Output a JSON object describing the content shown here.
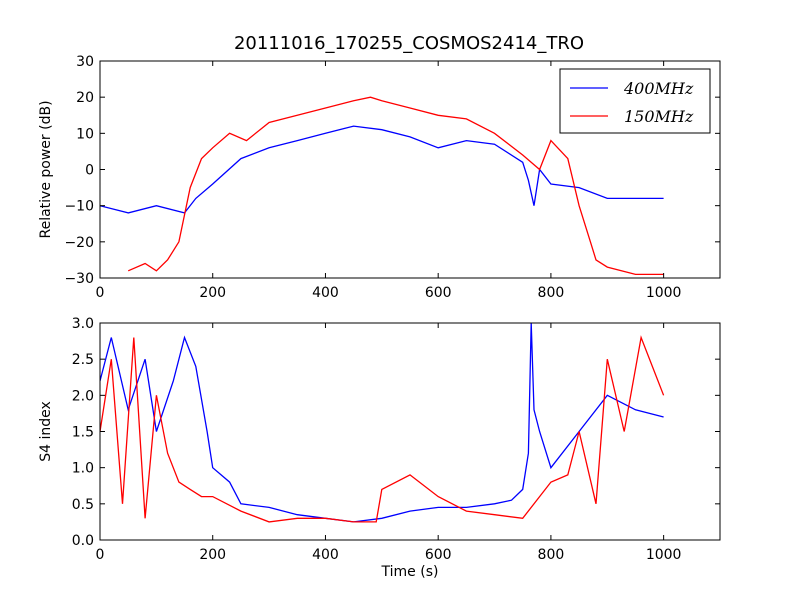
{
  "chart_data": [
    {
      "type": "line",
      "title": "20111016_170255_COSMOS2414_TRO",
      "xlabel": "",
      "ylabel": "Relative power (dB)",
      "xlim": [
        0,
        1100
      ],
      "ylim": [
        -30,
        30
      ],
      "xticks": [
        0,
        200,
        400,
        600,
        800,
        1000
      ],
      "yticks": [
        -30,
        -20,
        -10,
        0,
        10,
        20,
        30
      ],
      "xtick_labels": [
        "0",
        "200",
        "400",
        "600",
        "800",
        "1000"
      ],
      "ytick_labels": [
        "−30",
        "−20",
        "−10",
        "0",
        "10",
        "20",
        "30"
      ],
      "legend": "top-right",
      "grid": false,
      "series": [
        {
          "name": "400MHz",
          "color": "#0000ff",
          "x": [
            0,
            50,
            100,
            150,
            170,
            200,
            250,
            300,
            350,
            400,
            450,
            500,
            550,
            600,
            650,
            700,
            750,
            760,
            770,
            780,
            800,
            850,
            900,
            950,
            1000
          ],
          "y": [
            -10,
            -12,
            -10,
            -12,
            -8,
            -4,
            3,
            6,
            8,
            10,
            12,
            11,
            9,
            6,
            8,
            7,
            2,
            -3,
            -10,
            0,
            -4,
            -5,
            -8,
            -8,
            -8
          ]
        },
        {
          "name": "150MHz",
          "color": "#ff0000",
          "x": [
            50,
            80,
            100,
            120,
            140,
            160,
            180,
            200,
            230,
            260,
            300,
            350,
            400,
            450,
            480,
            500,
            550,
            600,
            650,
            700,
            750,
            780,
            800,
            830,
            850,
            870,
            880,
            900,
            950,
            1000
          ],
          "y": [
            -28,
            -26,
            -28,
            -25,
            -20,
            -5,
            3,
            6,
            10,
            8,
            13,
            15,
            17,
            19,
            20,
            19,
            17,
            15,
            14,
            10,
            4,
            0,
            8,
            3,
            -10,
            -20,
            -25,
            -27,
            -29,
            -29
          ]
        }
      ]
    },
    {
      "type": "line",
      "title": "",
      "xlabel": "Time (s)",
      "ylabel": "S4 index",
      "xlim": [
        0,
        1100
      ],
      "ylim": [
        0.0,
        3.0
      ],
      "xticks": [
        0,
        200,
        400,
        600,
        800,
        1000
      ],
      "yticks": [
        0.0,
        0.5,
        1.0,
        1.5,
        2.0,
        2.5,
        3.0
      ],
      "xtick_labels": [
        "0",
        "200",
        "400",
        "600",
        "800",
        "1000"
      ],
      "ytick_labels": [
        "0.0",
        "0.5",
        "1.0",
        "1.5",
        "2.0",
        "2.5",
        "3.0"
      ],
      "grid": false,
      "series": [
        {
          "name": "400MHz",
          "color": "#0000ff",
          "x": [
            0,
            20,
            50,
            80,
            100,
            130,
            150,
            170,
            190,
            200,
            230,
            250,
            300,
            350,
            400,
            450,
            500,
            550,
            600,
            650,
            700,
            730,
            750,
            760,
            765,
            770,
            780,
            800,
            850,
            900,
            950,
            1000
          ],
          "y": [
            2.2,
            2.8,
            1.8,
            2.5,
            1.5,
            2.2,
            2.8,
            2.4,
            1.5,
            1.0,
            0.8,
            0.5,
            0.45,
            0.35,
            0.3,
            0.25,
            0.3,
            0.4,
            0.45,
            0.45,
            0.5,
            0.55,
            0.7,
            1.2,
            3.0,
            1.8,
            1.5,
            1.0,
            1.5,
            2.0,
            1.8,
            1.7
          ]
        },
        {
          "name": "150MHz",
          "color": "#ff0000",
          "x": [
            0,
            20,
            40,
            60,
            80,
            100,
            120,
            140,
            160,
            180,
            200,
            250,
            300,
            350,
            400,
            450,
            490,
            500,
            550,
            600,
            650,
            700,
            750,
            780,
            800,
            830,
            850,
            880,
            900,
            930,
            960,
            1000
          ],
          "y": [
            1.5,
            2.5,
            0.5,
            2.8,
            0.3,
            2.0,
            1.2,
            0.8,
            0.7,
            0.6,
            0.6,
            0.4,
            0.25,
            0.3,
            0.3,
            0.25,
            0.25,
            0.7,
            0.9,
            0.6,
            0.4,
            0.35,
            0.3,
            0.6,
            0.8,
            0.9,
            1.5,
            0.5,
            2.5,
            1.5,
            2.8,
            2.0
          ]
        }
      ]
    }
  ]
}
